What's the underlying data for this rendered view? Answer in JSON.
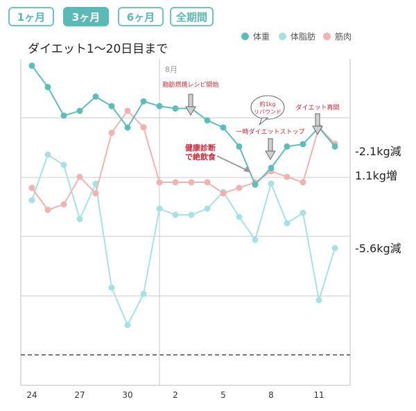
{
  "tabs": [
    {
      "label": "1ヶ月",
      "active": false
    },
    {
      "label": "3ヶ月",
      "active": true
    },
    {
      "label": "6ヶ月",
      "active": false
    },
    {
      "label": "全期間",
      "active": false
    }
  ],
  "colors": {
    "weight": "#5fbdb8",
    "fat": "#a8e1e3",
    "muscle": "#efb4b0",
    "accent": "#5bbab5",
    "annotation": "#cc2a3a"
  },
  "chart_data": {
    "type": "line",
    "title": "ダイエット1～20日目まで",
    "month_label": "8月",
    "x_ticks": [
      "24",
      "27",
      "30",
      "2",
      "5",
      "8",
      "11"
    ],
    "x_dates": [
      "7/24",
      "7/25",
      "7/26",
      "7/27",
      "7/28",
      "7/29",
      "7/30",
      "7/31",
      "8/1",
      "8/2",
      "8/3",
      "8/4",
      "8/5",
      "8/6",
      "8/7",
      "8/8",
      "8/9",
      "8/10",
      "8/11",
      "8/12"
    ],
    "grid": true,
    "legend_position": "top-right",
    "series": [
      {
        "name": "体重",
        "key": "weight",
        "values": [
          89.7,
          88.8,
          87.6,
          87.8,
          88.4,
          88.0,
          87.1,
          88.2,
          88.0,
          87.9,
          87.9,
          87.4,
          87.1,
          86.3,
          84.7,
          85.4,
          86.3,
          86.4,
          87.1,
          86.3
        ]
      },
      {
        "name": "体脂肪",
        "key": "fat",
        "values": [
          29.4,
          31.6,
          31.1,
          28.5,
          30.2,
          25.2,
          23.4,
          24.9,
          29.0,
          28.7,
          28.7,
          29.0,
          29.8,
          28.6,
          27.5,
          30.2,
          28.3,
          28.8,
          24.6,
          27.1
        ]
      },
      {
        "name": "筋肉",
        "key": "muscle",
        "values": [
          63.4,
          63.0,
          63.1,
          63.6,
          63.3,
          64.4,
          64.8,
          64.5,
          63.5,
          63.5,
          63.5,
          63.5,
          63.3,
          63.4,
          63.5,
          63.7,
          63.6,
          63.5,
          64.5,
          64.2
        ]
      }
    ],
    "annotations": [
      {
        "text": "脂肪燃焼レシピ開始"
      },
      {
        "text": "約1kg"
      },
      {
        "text": "リバウンド"
      },
      {
        "text": "ダイエット再開"
      },
      {
        "text": "一時ダイエットストップ"
      },
      {
        "text": "健康診断"
      },
      {
        "text": "で絶飲食"
      }
    ],
    "side_notes": [
      "-2.1kg減",
      "1.1kg増",
      "-5.6kg減"
    ]
  }
}
